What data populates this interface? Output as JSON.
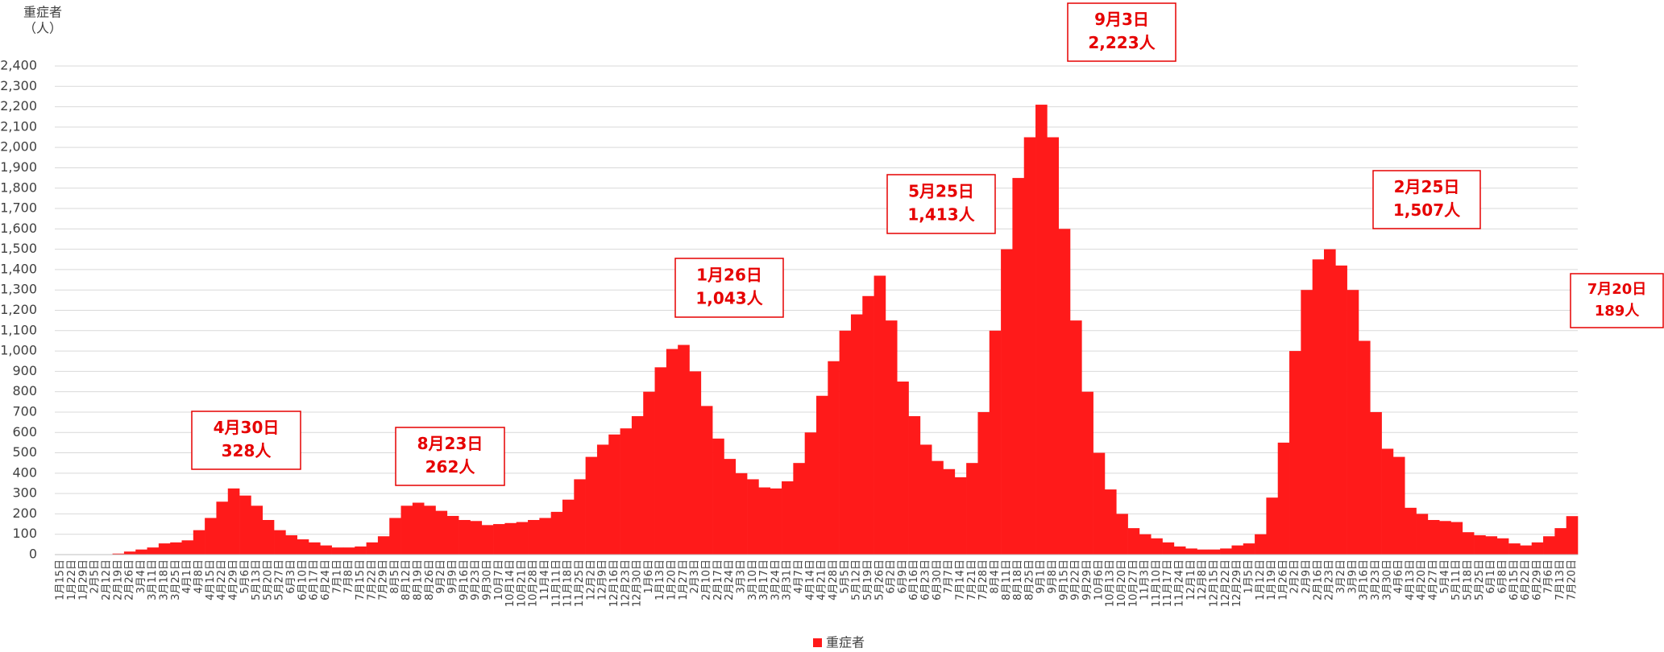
{
  "chart_data": {
    "type": "bar",
    "y_axis_label": "重症者",
    "y_axis_unit": "（人）",
    "categories": [
      "1月15日",
      "1月22日",
      "1月29日",
      "2月5日",
      "2月12日",
      "2月19日",
      "2月26日",
      "3月4日",
      "3月11日",
      "3月18日",
      "3月25日",
      "4月1日",
      "4月8日",
      "4月15日",
      "4月22日",
      "4月29日",
      "5月6日",
      "5月13日",
      "5月20日",
      "5月27日",
      "6月3日",
      "6月10日",
      "6月17日",
      "6月24日",
      "7月1日",
      "7月8日",
      "7月15日",
      "7月22日",
      "7月29日",
      "8月5日",
      "8月12日",
      "8月19日",
      "8月26日",
      "9月2日",
      "9月9日",
      "9月16日",
      "9月23日",
      "9月30日",
      "10月7日",
      "10月14日",
      "10月21日",
      "10月28日",
      "11月4日",
      "11月11日",
      "11月18日",
      "11月25日",
      "12月2日",
      "12月9日",
      "12月16日",
      "12月23日",
      "12月30日",
      "1月6日",
      "1月13日",
      "1月20日",
      "1月27日",
      "2月3日",
      "2月10日",
      "2月17日",
      "2月24日",
      "3月3日",
      "3月10日",
      "3月17日",
      "3月24日",
      "3月31日",
      "4月7日",
      "4月14日",
      "4月21日",
      "4月28日",
      "5月5日",
      "5月12日",
      "5月19日",
      "5月26日",
      "6月2日",
      "6月9日",
      "6月16日",
      "6月23日",
      "6月30日",
      "7月7日",
      "7月14日",
      "7月21日",
      "7月28日",
      "8月4日",
      "8月11日",
      "8月18日",
      "8月25日",
      "9月1日",
      "9月8日",
      "9月15日",
      "9月22日",
      "9月29日",
      "10月6日",
      "10月13日",
      "10月20日",
      "10月27日",
      "11月3日",
      "11月10日",
      "11月17日",
      "11月24日",
      "12月1日",
      "12月8日",
      "12月15日",
      "12月22日",
      "12月29日",
      "1月5日",
      "1月12日",
      "1月19日",
      "1月26日",
      "2月2日",
      "2月9日",
      "2月16日",
      "2月23日",
      "3月2日",
      "3月9日",
      "3月16日",
      "3月23日",
      "3月30日",
      "4月6日",
      "4月13日",
      "4月20日",
      "4月27日",
      "5月4日",
      "5月11日",
      "5月18日",
      "5月25日",
      "6月1日",
      "6月8日",
      "6月15日",
      "6月22日",
      "6月29日",
      "7月6日",
      "7月13日",
      "7月20日"
    ],
    "series": [
      {
        "name": "重症者",
        "color": "#ff1a1a",
        "values": [
          0,
          0,
          0,
          0,
          0,
          5,
          15,
          25,
          35,
          55,
          60,
          70,
          120,
          180,
          260,
          325,
          290,
          240,
          170,
          120,
          95,
          75,
          60,
          45,
          35,
          35,
          40,
          60,
          90,
          180,
          240,
          255,
          240,
          215,
          190,
          170,
          165,
          145,
          150,
          155,
          160,
          170,
          180,
          210,
          270,
          370,
          480,
          540,
          590,
          620,
          680,
          800,
          920,
          1010,
          1030,
          900,
          730,
          570,
          470,
          400,
          370,
          330,
          325,
          360,
          450,
          600,
          780,
          950,
          1100,
          1180,
          1270,
          1370,
          1150,
          850,
          680,
          540,
          460,
          420,
          380,
          450,
          700,
          1100,
          1500,
          1850,
          2050,
          2210,
          2050,
          1600,
          1150,
          800,
          500,
          320,
          200,
          130,
          100,
          80,
          60,
          40,
          30,
          25,
          25,
          30,
          45,
          55,
          100,
          280,
          550,
          1000,
          1300,
          1450,
          1500,
          1420,
          1300,
          1050,
          700,
          520,
          480,
          230,
          200,
          170,
          165,
          160,
          110,
          95,
          90,
          80,
          55,
          45,
          60,
          90,
          130,
          189
        ]
      }
    ],
    "ylim": [
      0,
      2400
    ],
    "yticks": [
      0,
      100,
      200,
      300,
      400,
      500,
      600,
      700,
      800,
      900,
      {
        "value": 1000,
        "label": "1,000"
      },
      {
        "value": 1100,
        "label": "1,100"
      },
      {
        "value": 1200,
        "label": "1,200"
      },
      {
        "value": 1300,
        "label": "1,300"
      },
      {
        "value": 1400,
        "label": "1,400"
      },
      {
        "value": 1500,
        "label": "1,500"
      },
      {
        "value": 1600,
        "label": "1,600"
      },
      {
        "value": 1700,
        "label": "1,700"
      },
      {
        "value": 1800,
        "label": "1,800"
      },
      {
        "value": 1900,
        "label": "1,900"
      },
      {
        "value": 2000,
        "label": "2,000"
      },
      {
        "value": 2100,
        "label": "2,100"
      },
      {
        "value": 2200,
        "label": "2,200"
      },
      {
        "value": 2300,
        "label": "2,300"
      },
      {
        "value": 2400,
        "label": "2,400"
      }
    ],
    "grid": true,
    "legend": "bottom",
    "annotations": [
      {
        "lines": [
          "4月30日",
          "328人"
        ]
      },
      {
        "lines": [
          "8月23日",
          "262人"
        ]
      },
      {
        "lines": [
          "1月26日",
          "1,043人"
        ]
      },
      {
        "lines": [
          "5月25日",
          "1,413人"
        ]
      },
      {
        "lines": [
          "9月3日",
          "2,223人"
        ]
      },
      {
        "lines": [
          "2月25日",
          "1,507人"
        ]
      },
      {
        "lines": [
          "7月20日",
          "189人"
        ]
      }
    ]
  }
}
